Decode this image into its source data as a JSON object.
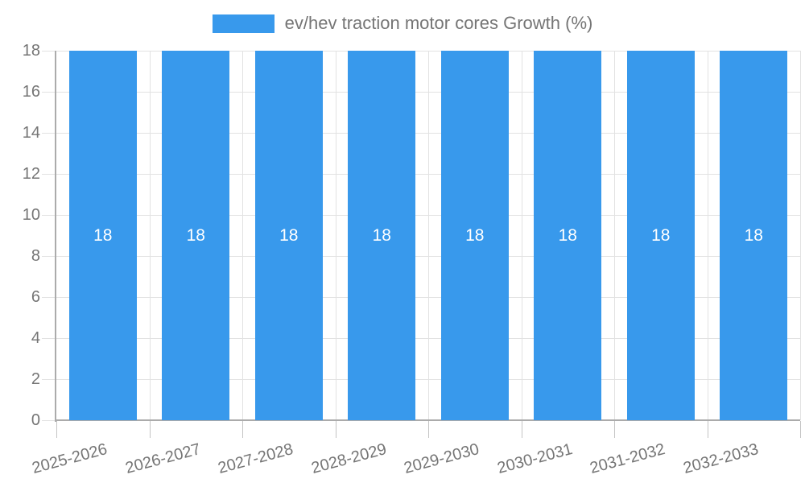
{
  "chart_data": {
    "type": "bar",
    "title": "ev/hev traction motor cores Growth (%)",
    "series_name": "ev/hev traction motor cores Growth (%)",
    "categories": [
      "2025-2026",
      "2026-2027",
      "2027-2028",
      "2028-2029",
      "2029-2030",
      "2030-2031",
      "2031-2032",
      "2032-2033"
    ],
    "values": [
      18,
      18,
      18,
      18,
      18,
      18,
      18,
      18
    ],
    "bar_value_labels": [
      "18",
      "18",
      "18",
      "18",
      "18",
      "18",
      "18",
      "18"
    ],
    "xlabel": "",
    "ylabel": "",
    "ylim": [
      0,
      18
    ],
    "yticks": [
      0,
      2,
      4,
      6,
      8,
      10,
      12,
      14,
      16,
      18
    ],
    "grid": true,
    "legend_position": "top-center",
    "x_tick_rotation_deg": -15,
    "colors": {
      "bar": "#3899EC",
      "bar_value_label": "#FFFFFF",
      "axis_text": "#757575",
      "legend_text": "#757575",
      "gridline": "#E2E2E2",
      "axis_line": "#ABABAB",
      "tick_mark": "#C4C4C4",
      "background": "#FFFFFF"
    }
  }
}
